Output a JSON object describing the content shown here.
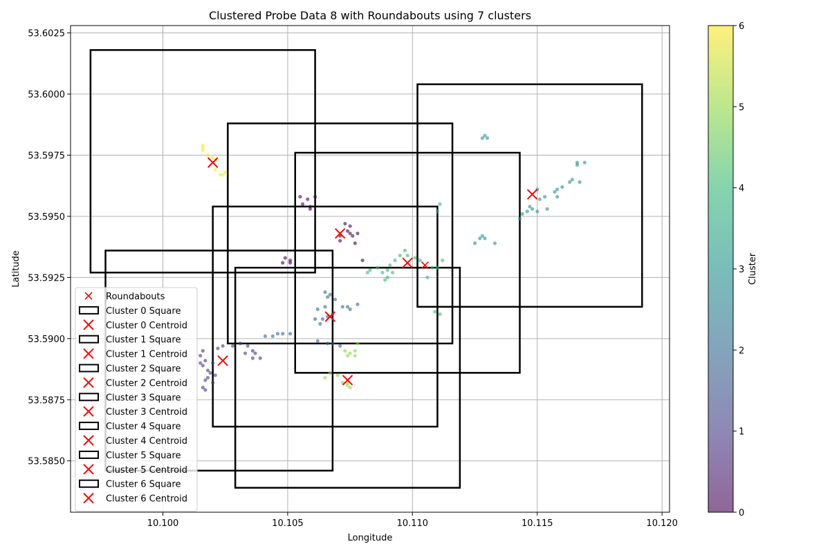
{
  "chart_data": {
    "type": "scatter",
    "title": "Clustered Probe Data 8 with Roundabouts using 7 clusters",
    "xlabel": "Longitude",
    "ylabel": "Latitude",
    "colorbar_label": "Cluster",
    "xlim": [
      10.0963,
      10.1203
    ],
    "ylim": [
      53.5829,
      53.6028
    ],
    "xticks": [
      "10.100",
      "10.105",
      "10.110",
      "10.115",
      "10.120"
    ],
    "xtick_values": [
      10.1,
      10.105,
      10.11,
      10.115,
      10.12
    ],
    "yticks": [
      "53.5850",
      "53.5875",
      "53.5900",
      "53.5925",
      "53.5950",
      "53.5975",
      "53.6000",
      "53.6025"
    ],
    "ytick_values": [
      53.585,
      53.5875,
      53.59,
      53.5925,
      53.595,
      53.5975,
      53.6,
      53.6025
    ],
    "colorbar_ticks": [
      "0",
      "1",
      "2",
      "3",
      "4",
      "5",
      "6"
    ],
    "grid": true,
    "legend_position": "lower-left",
    "colors": {
      "c0": "#440154",
      "c1": "#443983",
      "c2": "#31688e",
      "c3": "#21918c",
      "c4": "#35b779",
      "c5": "#90d743",
      "c6": "#fde725",
      "centroid": "#ff0000",
      "square": "#000000"
    },
    "legend": [
      {
        "label": "Roundabouts",
        "marker": "x-small"
      },
      {
        "label": "Cluster 0 Square",
        "marker": "rect"
      },
      {
        "label": "Cluster 0 Centroid",
        "marker": "x"
      },
      {
        "label": "Cluster 1 Square",
        "marker": "rect"
      },
      {
        "label": "Cluster 1 Centroid",
        "marker": "x"
      },
      {
        "label": "Cluster 2 Square",
        "marker": "rect"
      },
      {
        "label": "Cluster 2 Centroid",
        "marker": "x"
      },
      {
        "label": "Cluster 3 Square",
        "marker": "rect"
      },
      {
        "label": "Cluster 3 Centroid",
        "marker": "x"
      },
      {
        "label": "Cluster 4 Square",
        "marker": "rect"
      },
      {
        "label": "Cluster 4 Centroid",
        "marker": "x"
      },
      {
        "label": "Cluster 5 Square",
        "marker": "rect"
      },
      {
        "label": "Cluster 5 Centroid",
        "marker": "x"
      },
      {
        "label": "Cluster 6 Square",
        "marker": "rect"
      },
      {
        "label": "Cluster 6 Centroid",
        "marker": "x"
      }
    ],
    "squares": [
      {
        "cluster": 0,
        "x0": 10.0971,
        "x1": 10.1061,
        "y0": 53.5927,
        "y1": 53.6018
      },
      {
        "cluster": 1,
        "x0": 10.0977,
        "x1": 10.1068,
        "y0": 53.5846,
        "y1": 53.5936
      },
      {
        "cluster": 2,
        "x0": 10.102,
        "x1": 10.111,
        "y0": 53.5864,
        "y1": 53.5954
      },
      {
        "cluster": 3,
        "x0": 10.1102,
        "x1": 10.1192,
        "y0": 53.5913,
        "y1": 53.6004
      },
      {
        "cluster": 4,
        "x0": 10.1053,
        "x1": 10.1143,
        "y0": 53.5886,
        "y1": 53.5976
      },
      {
        "cluster": 5,
        "x0": 10.1029,
        "x1": 10.1119,
        "y0": 53.5839,
        "y1": 53.5929
      },
      {
        "cluster": 6,
        "x0": 10.1026,
        "x1": 10.1116,
        "y0": 53.5898,
        "y1": 53.5988
      }
    ],
    "centroids": [
      {
        "cluster": 0,
        "x": 10.1071,
        "y": 53.5943
      },
      {
        "cluster": 1,
        "x": 10.1024,
        "y": 53.5891
      },
      {
        "cluster": 2,
        "x": 10.1067,
        "y": 53.5909
      },
      {
        "cluster": 3,
        "x": 10.1148,
        "y": 53.5959
      },
      {
        "cluster": 4,
        "x": 10.1098,
        "y": 53.5931
      },
      {
        "cluster": 5,
        "x": 10.1074,
        "y": 53.5883
      },
      {
        "cluster": 6,
        "x": 10.102,
        "y": 53.5972
      }
    ],
    "roundabouts": [
      {
        "x": 10.1105,
        "y": 53.593
      }
    ],
    "points": [
      {
        "cluster": 6,
        "x": 10.1016,
        "y": 53.5979
      },
      {
        "cluster": 6,
        "x": 10.1016,
        "y": 53.5977
      },
      {
        "cluster": 6,
        "x": 10.1018,
        "y": 53.5975
      },
      {
        "cluster": 6,
        "x": 10.102,
        "y": 53.5974
      },
      {
        "cluster": 6,
        "x": 10.1021,
        "y": 53.5973
      },
      {
        "cluster": 6,
        "x": 10.1021,
        "y": 53.5969
      },
      {
        "cluster": 6,
        "x": 10.1023,
        "y": 53.5967
      },
      {
        "cluster": 6,
        "x": 10.1025,
        "y": 53.5968
      },
      {
        "cluster": 6,
        "x": 10.1016,
        "y": 53.5978
      },
      {
        "cluster": 6,
        "x": 10.1024,
        "y": 53.5967
      },
      {
        "cluster": 0,
        "x": 10.1055,
        "y": 53.5958
      },
      {
        "cluster": 0,
        "x": 10.1058,
        "y": 53.5957
      },
      {
        "cluster": 0,
        "x": 10.1061,
        "y": 53.5958
      },
      {
        "cluster": 0,
        "x": 10.1056,
        "y": 53.5955
      },
      {
        "cluster": 0,
        "x": 10.1059,
        "y": 53.5954
      },
      {
        "cluster": 0,
        "x": 10.1059,
        "y": 53.5953
      },
      {
        "cluster": 0,
        "x": 10.1073,
        "y": 53.5947
      },
      {
        "cluster": 0,
        "x": 10.1075,
        "y": 53.5946
      },
      {
        "cluster": 0,
        "x": 10.1074,
        "y": 53.5944
      },
      {
        "cluster": 0,
        "x": 10.1075,
        "y": 53.5943
      },
      {
        "cluster": 0,
        "x": 10.1076,
        "y": 53.5942
      },
      {
        "cluster": 0,
        "x": 10.1078,
        "y": 53.5943
      },
      {
        "cluster": 0,
        "x": 10.1071,
        "y": 53.5942
      },
      {
        "cluster": 0,
        "x": 10.1071,
        "y": 53.594
      },
      {
        "cluster": 0,
        "x": 10.1077,
        "y": 53.5939
      },
      {
        "cluster": 0,
        "x": 10.108,
        "y": 53.5932
      },
      {
        "cluster": 0,
        "x": 10.1049,
        "y": 53.5933
      },
      {
        "cluster": 0,
        "x": 10.1051,
        "y": 53.5932
      },
      {
        "cluster": 0,
        "x": 10.1048,
        "y": 53.5931
      },
      {
        "cluster": 0,
        "x": 10.1051,
        "y": 53.5931
      },
      {
        "cluster": 1,
        "x": 10.1015,
        "y": 53.5893
      },
      {
        "cluster": 1,
        "x": 10.1016,
        "y": 53.5895
      },
      {
        "cluster": 1,
        "x": 10.1017,
        "y": 53.5891
      },
      {
        "cluster": 1,
        "x": 10.1016,
        "y": 53.5889
      },
      {
        "cluster": 1,
        "x": 10.1018,
        "y": 53.5887
      },
      {
        "cluster": 1,
        "x": 10.1019,
        "y": 53.5886
      },
      {
        "cluster": 1,
        "x": 10.1021,
        "y": 53.5885
      },
      {
        "cluster": 1,
        "x": 10.1018,
        "y": 53.5884
      },
      {
        "cluster": 1,
        "x": 10.1017,
        "y": 53.5883
      },
      {
        "cluster": 1,
        "x": 10.102,
        "y": 53.5882
      },
      {
        "cluster": 1,
        "x": 10.1016,
        "y": 53.588
      },
      {
        "cluster": 1,
        "x": 10.1017,
        "y": 53.5879
      },
      {
        "cluster": 1,
        "x": 10.1022,
        "y": 53.5896
      },
      {
        "cluster": 1,
        "x": 10.1024,
        "y": 53.5897
      },
      {
        "cluster": 1,
        "x": 10.1028,
        "y": 53.5897
      },
      {
        "cluster": 1,
        "x": 10.1031,
        "y": 53.5898
      },
      {
        "cluster": 1,
        "x": 10.1034,
        "y": 53.5897
      },
      {
        "cluster": 1,
        "x": 10.1036,
        "y": 53.5895
      },
      {
        "cluster": 1,
        "x": 10.1037,
        "y": 53.5894
      },
      {
        "cluster": 1,
        "x": 10.1039,
        "y": 53.5892
      },
      {
        "cluster": 1,
        "x": 10.1036,
        "y": 53.5892
      },
      {
        "cluster": 1,
        "x": 10.1033,
        "y": 53.5894
      },
      {
        "cluster": 1,
        "x": 10.102,
        "y": 53.589
      },
      {
        "cluster": 1,
        "x": 10.1015,
        "y": 53.589
      },
      {
        "cluster": 2,
        "x": 10.1041,
        "y": 53.5901
      },
      {
        "cluster": 2,
        "x": 10.1044,
        "y": 53.5901
      },
      {
        "cluster": 2,
        "x": 10.1046,
        "y": 53.5902
      },
      {
        "cluster": 2,
        "x": 10.1048,
        "y": 53.5902
      },
      {
        "cluster": 2,
        "x": 10.1051,
        "y": 53.5902
      },
      {
        "cluster": 2,
        "x": 10.1062,
        "y": 53.5899
      },
      {
        "cluster": 2,
        "x": 10.1066,
        "y": 53.5898
      },
      {
        "cluster": 2,
        "x": 10.1068,
        "y": 53.5898
      },
      {
        "cluster": 2,
        "x": 10.1071,
        "y": 53.5897
      },
      {
        "cluster": 2,
        "x": 10.1064,
        "y": 53.5908
      },
      {
        "cluster": 2,
        "x": 10.1066,
        "y": 53.5909
      },
      {
        "cluster": 2,
        "x": 10.1068,
        "y": 53.591
      },
      {
        "cluster": 2,
        "x": 10.1062,
        "y": 53.5912
      },
      {
        "cluster": 2,
        "x": 10.1065,
        "y": 53.5913
      },
      {
        "cluster": 2,
        "x": 10.1066,
        "y": 53.5917
      },
      {
        "cluster": 2,
        "x": 10.1065,
        "y": 53.5919
      },
      {
        "cluster": 2,
        "x": 10.1067,
        "y": 53.5918
      },
      {
        "cluster": 2,
        "x": 10.1069,
        "y": 53.5916
      },
      {
        "cluster": 2,
        "x": 10.1072,
        "y": 53.5913
      },
      {
        "cluster": 2,
        "x": 10.1074,
        "y": 53.5913
      },
      {
        "cluster": 2,
        "x": 10.1075,
        "y": 53.5912
      },
      {
        "cluster": 2,
        "x": 10.1078,
        "y": 53.5914
      },
      {
        "cluster": 2,
        "x": 10.1061,
        "y": 53.5908
      },
      {
        "cluster": 2,
        "x": 10.1063,
        "y": 53.5906
      },
      {
        "cluster": 3,
        "x": 10.1129,
        "y": 53.5983
      },
      {
        "cluster": 3,
        "x": 10.113,
        "y": 53.5982
      },
      {
        "cluster": 3,
        "x": 10.1128,
        "y": 53.5982
      },
      {
        "cluster": 3,
        "x": 10.1166,
        "y": 53.5972
      },
      {
        "cluster": 3,
        "x": 10.1169,
        "y": 53.5972
      },
      {
        "cluster": 3,
        "x": 10.1166,
        "y": 53.5971
      },
      {
        "cluster": 3,
        "x": 10.1164,
        "y": 53.5965
      },
      {
        "cluster": 3,
        "x": 10.1163,
        "y": 53.5964
      },
      {
        "cluster": 3,
        "x": 10.1167,
        "y": 53.5964
      },
      {
        "cluster": 3,
        "x": 10.116,
        "y": 53.5962
      },
      {
        "cluster": 3,
        "x": 10.1158,
        "y": 53.5961
      },
      {
        "cluster": 3,
        "x": 10.1157,
        "y": 53.596
      },
      {
        "cluster": 3,
        "x": 10.1153,
        "y": 53.5958
      },
      {
        "cluster": 3,
        "x": 10.1158,
        "y": 53.5958
      },
      {
        "cluster": 3,
        "x": 10.1151,
        "y": 53.5957
      },
      {
        "cluster": 3,
        "x": 10.115,
        "y": 53.5961
      },
      {
        "cluster": 3,
        "x": 10.1147,
        "y": 53.5954
      },
      {
        "cluster": 3,
        "x": 10.1148,
        "y": 53.5953
      },
      {
        "cluster": 3,
        "x": 10.1146,
        "y": 53.5952
      },
      {
        "cluster": 3,
        "x": 10.1144,
        "y": 53.5951
      },
      {
        "cluster": 3,
        "x": 10.1143,
        "y": 53.5949
      },
      {
        "cluster": 3,
        "x": 10.115,
        "y": 53.5952
      },
      {
        "cluster": 3,
        "x": 10.1154,
        "y": 53.5953
      },
      {
        "cluster": 3,
        "x": 10.1128,
        "y": 53.5942
      },
      {
        "cluster": 3,
        "x": 10.1129,
        "y": 53.5941
      },
      {
        "cluster": 3,
        "x": 10.1127,
        "y": 53.5941
      },
      {
        "cluster": 3,
        "x": 10.1125,
        "y": 53.5939
      },
      {
        "cluster": 3,
        "x": 10.1133,
        "y": 53.5939
      },
      {
        "cluster": 4,
        "x": 10.1095,
        "y": 53.5934
      },
      {
        "cluster": 4,
        "x": 10.1098,
        "y": 53.5934
      },
      {
        "cluster": 4,
        "x": 10.1101,
        "y": 53.5933
      },
      {
        "cluster": 4,
        "x": 10.1103,
        "y": 53.5932
      },
      {
        "cluster": 4,
        "x": 10.1093,
        "y": 53.5932
      },
      {
        "cluster": 4,
        "x": 10.1091,
        "y": 53.593
      },
      {
        "cluster": 4,
        "x": 10.109,
        "y": 53.5928
      },
      {
        "cluster": 4,
        "x": 10.1088,
        "y": 53.5927
      },
      {
        "cluster": 4,
        "x": 10.1086,
        "y": 53.5929
      },
      {
        "cluster": 4,
        "x": 10.1083,
        "y": 53.5928
      },
      {
        "cluster": 4,
        "x": 10.1082,
        "y": 53.5927
      },
      {
        "cluster": 4,
        "x": 10.1089,
        "y": 53.5924
      },
      {
        "cluster": 4,
        "x": 10.109,
        "y": 53.5925
      },
      {
        "cluster": 4,
        "x": 10.1092,
        "y": 53.5927
      },
      {
        "cluster": 4,
        "x": 10.1097,
        "y": 53.5936
      },
      {
        "cluster": 4,
        "x": 10.1108,
        "y": 53.5929
      },
      {
        "cluster": 4,
        "x": 10.1106,
        "y": 53.5925
      },
      {
        "cluster": 4,
        "x": 10.111,
        "y": 53.5929
      },
      {
        "cluster": 4,
        "x": 10.1111,
        "y": 53.5955
      },
      {
        "cluster": 4,
        "x": 10.111,
        "y": 53.5952
      },
      {
        "cluster": 4,
        "x": 10.1112,
        "y": 53.5932
      },
      {
        "cluster": 4,
        "x": 10.1109,
        "y": 53.5911
      },
      {
        "cluster": 4,
        "x": 10.1111,
        "y": 53.591
      },
      {
        "cluster": 5,
        "x": 10.1073,
        "y": 53.5895
      },
      {
        "cluster": 5,
        "x": 10.1075,
        "y": 53.5894
      },
      {
        "cluster": 5,
        "x": 10.1077,
        "y": 53.5895
      },
      {
        "cluster": 5,
        "x": 10.1074,
        "y": 53.5893
      },
      {
        "cluster": 5,
        "x": 10.1077,
        "y": 53.5893
      },
      {
        "cluster": 5,
        "x": 10.1078,
        "y": 53.5898
      },
      {
        "cluster": 5,
        "x": 10.1067,
        "y": 53.5886
      },
      {
        "cluster": 5,
        "x": 10.107,
        "y": 53.5885
      },
      {
        "cluster": 5,
        "x": 10.1065,
        "y": 53.5884
      },
      {
        "cluster": 5,
        "x": 10.1072,
        "y": 53.5882
      },
      {
        "cluster": 5,
        "x": 10.1074,
        "y": 53.5881
      },
      {
        "cluster": 5,
        "x": 10.1075,
        "y": 53.588
      },
      {
        "cluster": 5,
        "x": 10.1074,
        "y": 53.5882
      }
    ]
  }
}
